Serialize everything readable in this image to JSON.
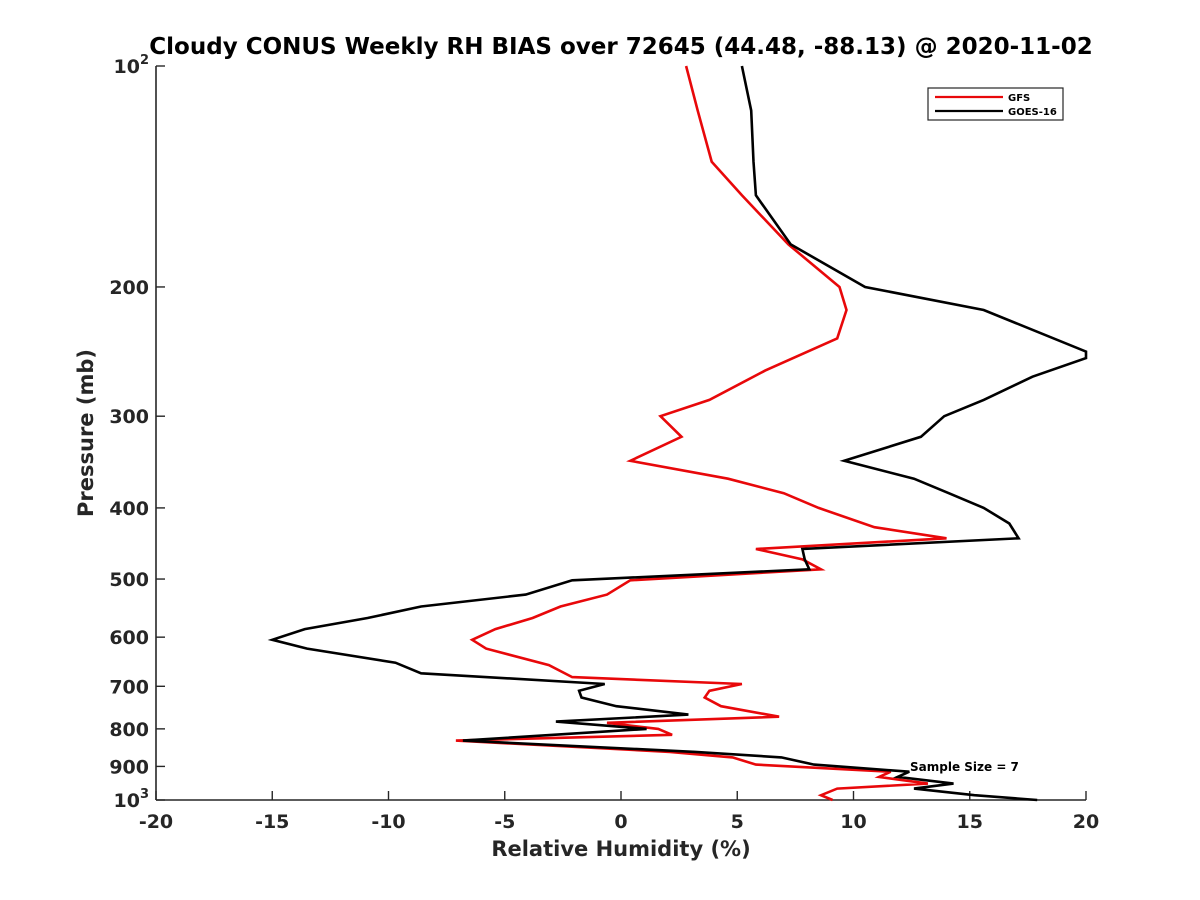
{
  "chart_data": {
    "type": "line",
    "title": "Cloudy CONUS Weekly RH BIAS over 72645 (44.48, -88.13) @ 2020-11-02",
    "xlabel": "Relative Humidity (%)",
    "ylabel": "Pressure (mb)",
    "xlim": [
      -20,
      20
    ],
    "ylim": [
      100,
      1000
    ],
    "yscale": "log",
    "y_reversed": true,
    "x_ticks": [
      -20,
      -15,
      -10,
      -5,
      0,
      5,
      10,
      15,
      20
    ],
    "x_tick_labels": [
      "-20",
      "-15",
      "-10",
      "-5",
      "0",
      "5",
      "10",
      "15",
      "20"
    ],
    "y_ticks": [
      {
        "value": 100,
        "base": "10",
        "exp": "2"
      },
      {
        "value": 200,
        "label": "200"
      },
      {
        "value": 300,
        "label": "300"
      },
      {
        "value": 400,
        "label": "400"
      },
      {
        "value": 500,
        "label": "500"
      },
      {
        "value": 600,
        "label": "600"
      },
      {
        "value": 700,
        "label": "700"
      },
      {
        "value": 800,
        "label": "800"
      },
      {
        "value": 900,
        "label": "900"
      },
      {
        "value": 1000,
        "base": "10",
        "exp": "3"
      }
    ],
    "grid": false,
    "legend_position": "top-right",
    "annotation": "Sample Size = 7",
    "series": [
      {
        "name": "GFS",
        "color": "#e8080a",
        "points": [
          [
            2.8,
            100
          ],
          [
            3.3,
            115
          ],
          [
            3.9,
            135
          ],
          [
            5.2,
            150
          ],
          [
            7.2,
            175
          ],
          [
            9.4,
            200
          ],
          [
            9.7,
            215
          ],
          [
            9.3,
            235
          ],
          [
            6.2,
            260
          ],
          [
            3.8,
            285
          ],
          [
            1.7,
            300
          ],
          [
            2.6,
            320
          ],
          [
            0.4,
            345
          ],
          [
            4.6,
            365
          ],
          [
            7.0,
            382
          ],
          [
            8.5,
            400
          ],
          [
            10.9,
            425
          ],
          [
            14.0,
            440
          ],
          [
            5.8,
            455
          ],
          [
            7.8,
            470
          ],
          [
            8.6,
            485
          ],
          [
            0.4,
            502
          ],
          [
            -0.6,
            525
          ],
          [
            -2.6,
            545
          ],
          [
            -3.8,
            565
          ],
          [
            -5.4,
            585
          ],
          [
            -6.4,
            605
          ],
          [
            -5.8,
            622
          ],
          [
            -3.1,
            655
          ],
          [
            -2.1,
            680
          ],
          [
            5.2,
            695
          ],
          [
            3.8,
            710
          ],
          [
            3.6,
            725
          ],
          [
            4.3,
            745
          ],
          [
            6.8,
            770
          ],
          [
            -0.6,
            785
          ],
          [
            1.6,
            800
          ],
          [
            2.2,
            815
          ],
          [
            -7.1,
            830
          ],
          [
            2.1,
            860
          ],
          [
            4.8,
            875
          ],
          [
            5.8,
            895
          ],
          [
            11.6,
            915
          ],
          [
            11.1,
            930
          ],
          [
            13.2,
            950
          ],
          [
            9.3,
            965
          ],
          [
            8.6,
            985
          ],
          [
            9.1,
            1000
          ]
        ]
      },
      {
        "name": "GOES-16",
        "color": "#000000",
        "points": [
          [
            5.2,
            100
          ],
          [
            5.6,
            115
          ],
          [
            5.7,
            135
          ],
          [
            5.8,
            150
          ],
          [
            7.3,
            175
          ],
          [
            10.5,
            200
          ],
          [
            15.6,
            215
          ],
          [
            20.0,
            245
          ],
          [
            20.0,
            250
          ],
          [
            17.7,
            265
          ],
          [
            15.6,
            285
          ],
          [
            13.9,
            300
          ],
          [
            12.9,
            320
          ],
          [
            9.6,
            345
          ],
          [
            12.6,
            365
          ],
          [
            14.1,
            382
          ],
          [
            15.6,
            400
          ],
          [
            16.7,
            420
          ],
          [
            17.1,
            440
          ],
          [
            7.8,
            455
          ],
          [
            7.9,
            470
          ],
          [
            8.1,
            485
          ],
          [
            -2.1,
            502
          ],
          [
            -4.1,
            525
          ],
          [
            -8.6,
            545
          ],
          [
            -10.9,
            565
          ],
          [
            -13.6,
            585
          ],
          [
            -15.0,
            605
          ],
          [
            -13.5,
            622
          ],
          [
            -9.7,
            650
          ],
          [
            -8.6,
            672
          ],
          [
            -0.7,
            695
          ],
          [
            -1.8,
            710
          ],
          [
            -1.7,
            725
          ],
          [
            -0.2,
            745
          ],
          [
            2.9,
            765
          ],
          [
            -2.8,
            782
          ],
          [
            1.1,
            800
          ],
          [
            -6.8,
            830
          ],
          [
            3.2,
            860
          ],
          [
            6.9,
            875
          ],
          [
            8.3,
            895
          ],
          [
            12.4,
            915
          ],
          [
            11.9,
            930
          ],
          [
            14.3,
            950
          ],
          [
            12.6,
            965
          ],
          [
            15.2,
            985
          ],
          [
            17.9,
            1000
          ]
        ]
      }
    ]
  }
}
